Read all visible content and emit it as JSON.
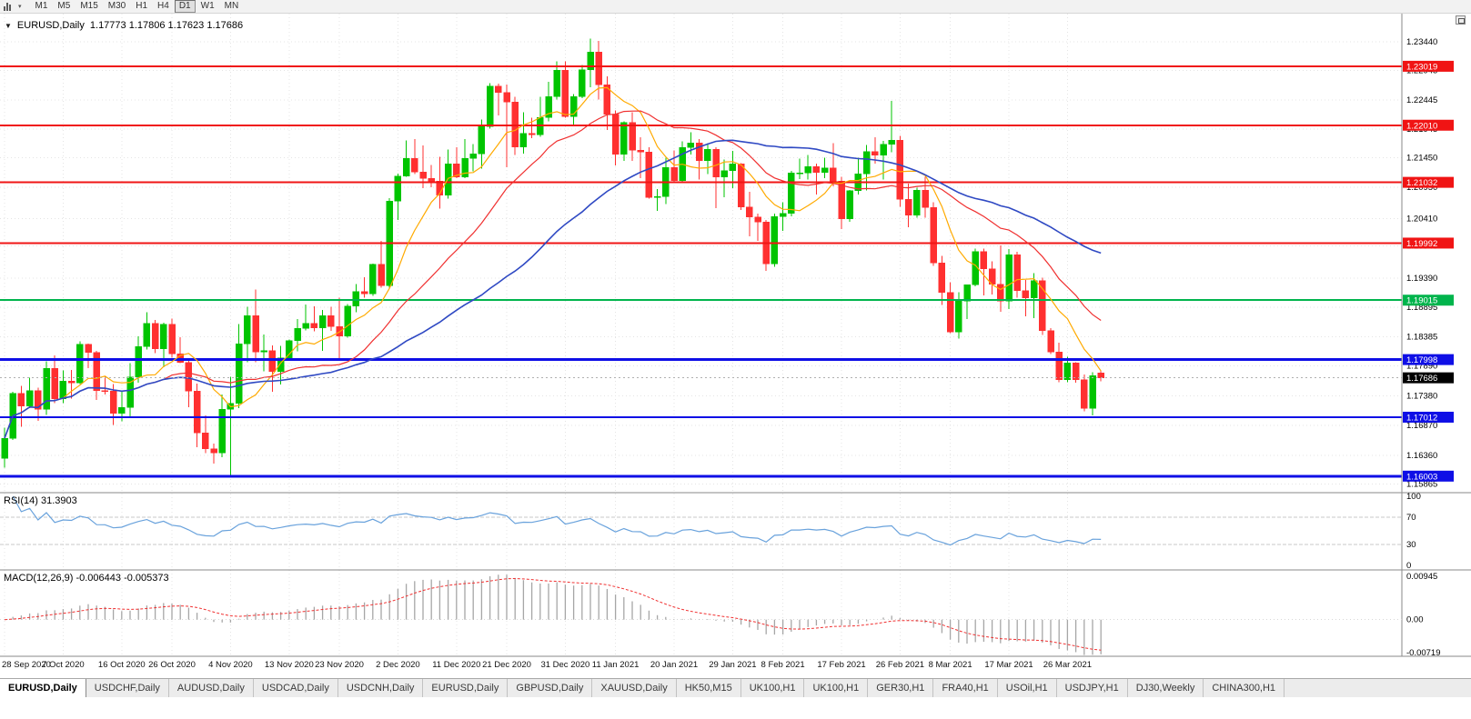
{
  "toolbar": {
    "timeframes": [
      "M1",
      "M5",
      "M15",
      "M30",
      "H1",
      "H4",
      "D1",
      "W1",
      "MN"
    ],
    "active_timeframe": "D1"
  },
  "symbol_info": {
    "title": "EURUSD,Daily",
    "ohlc_text": "1.17773 1.17806 1.17623 1.17686"
  },
  "icons": {
    "chart_type": "bar-chart-icon",
    "dropdown_caret": "▾",
    "symbol_marker": "▼"
  },
  "tabs": [
    "EURUSD,Daily",
    "USDCHF,Daily",
    "AUDUSD,Daily",
    "USDCAD,Daily",
    "USDCNH,Daily",
    "EURUSD,Daily",
    "GBPUSD,Daily",
    "XAUUSD,Daily",
    "HK50,M15",
    "UK100,H1",
    "UK100,H1",
    "GER30,H1",
    "FRA40,H1",
    "USOil,H1",
    "USDJPY,H1",
    "DJ30,Weekly",
    "CHINA300,H1"
  ],
  "active_tab_index": 0,
  "colors": {
    "bull": "#00c400",
    "bear": "#ff3030",
    "grid": "#e4e4e4",
    "axis": "#8a8a8a",
    "bid_line": "#b0b0b0",
    "rsi_line": "#69a2dc",
    "macd_hist": "#a6a6a6",
    "macd_signal": "#f03030",
    "current_price_bg": "#000000"
  },
  "chart_data": {
    "type": "candlestick",
    "symbol": "EURUSD",
    "timeframe": "Daily",
    "y_range": [
      1.1572,
      1.2392
    ],
    "price_ticks": [
      "1.23440",
      "1.22945",
      "1.22445",
      "1.21945",
      "1.21450",
      "1.20950",
      "1.20410",
      "1.19945",
      "1.19390",
      "1.18895",
      "1.18385",
      "1.17890",
      "1.17380",
      "1.16870",
      "1.16360",
      "1.15865"
    ],
    "hlines": [
      {
        "price": 1.23019,
        "label": "1.23019",
        "color": "#f01414",
        "width": 2
      },
      {
        "price": 1.2201,
        "label": "1.22010",
        "color": "#f01414",
        "width": 2
      },
      {
        "price": 1.21032,
        "label": "1.21032",
        "color": "#f01414",
        "width": 2
      },
      {
        "price": 1.19992,
        "label": "1.19992",
        "color": "#f01414",
        "width": 2
      },
      {
        "price": 1.19015,
        "label": "1.19015",
        "color": "#00b44c",
        "width": 2
      },
      {
        "price": 1.17998,
        "label": "1.17998",
        "color": "#0f0fe6",
        "width": 3
      },
      {
        "price": 1.17012,
        "label": "1.17012",
        "color": "#0f0fe6",
        "width": 2
      },
      {
        "price": 1.16003,
        "label": "1.16003",
        "color": "#0f0fe6",
        "width": 3
      }
    ],
    "current_price": 1.17686,
    "current_price_label": "1.17686",
    "moving_averages": [
      {
        "period": 8,
        "color": "#ffaa00",
        "width": 1.2
      },
      {
        "period": 20,
        "color": "#f03030",
        "width": 1.2
      },
      {
        "period": 40,
        "color": "#2f49c3",
        "width": 1.6
      }
    ],
    "rsi": {
      "header": "RSI(14) 31.3903",
      "period": 14,
      "last": 31.3903,
      "ticks": [
        100,
        70,
        30,
        0
      ],
      "levels": [
        70,
        30
      ]
    },
    "macd": {
      "header": "MACD(12,26,9) -0.006443 -0.005373",
      "fast": 12,
      "slow": 26,
      "signal_period": 9,
      "last_main": -0.006443,
      "last_signal": -0.005373,
      "range": [
        -0.00719,
        0.00945
      ],
      "ticks": [
        {
          "label": "0.00945",
          "value": 0.00945
        },
        {
          "label": "0.00",
          "value": 0.0
        },
        {
          "label": "-0.00719",
          "value": -0.00719
        }
      ]
    },
    "date_labels": [
      {
        "t": "28 Sep 2020",
        "i": 0
      },
      {
        "t": "7 Oct 2020",
        "i": 7
      },
      {
        "t": "16 Oct 2020",
        "i": 14
      },
      {
        "t": "26 Oct 2020",
        "i": 20
      },
      {
        "t": "4 Nov 2020",
        "i": 27
      },
      {
        "t": "13 Nov 2020",
        "i": 34
      },
      {
        "t": "23 Nov 2020",
        "i": 40
      },
      {
        "t": "2 Dec 2020",
        "i": 47
      },
      {
        "t": "11 Dec 2020",
        "i": 54
      },
      {
        "t": "21 Dec 2020",
        "i": 60
      },
      {
        "t": "31 Dec 2020",
        "i": 67
      },
      {
        "t": "11 Jan 2021",
        "i": 73
      },
      {
        "t": "20 Jan 2021",
        "i": 80
      },
      {
        "t": "29 Jan 2021",
        "i": 87
      },
      {
        "t": "8 Feb 2021",
        "i": 93
      },
      {
        "t": "17 Feb 2021",
        "i": 100
      },
      {
        "t": "26 Feb 2021",
        "i": 107
      },
      {
        "t": "8 Mar 2021",
        "i": 113
      },
      {
        "t": "17 Mar 2021",
        "i": 120
      },
      {
        "t": "26 Mar 2021",
        "i": 127
      }
    ],
    "ohlc": [
      [
        1.1631,
        1.1683,
        1.1615,
        1.1665
      ],
      [
        1.1665,
        1.1745,
        1.1662,
        1.1742
      ],
      [
        1.1742,
        1.1755,
        1.1685,
        1.172
      ],
      [
        1.172,
        1.1769,
        1.1717,
        1.1747
      ],
      [
        1.1747,
        1.1752,
        1.1695,
        1.1715
      ],
      [
        1.1715,
        1.1797,
        1.1705,
        1.1785
      ],
      [
        1.1785,
        1.1807,
        1.1725,
        1.1733
      ],
      [
        1.1733,
        1.1781,
        1.1725,
        1.1763
      ],
      [
        1.1763,
        1.1782,
        1.1733,
        1.176
      ],
      [
        1.176,
        1.1831,
        1.1758,
        1.1826
      ],
      [
        1.1826,
        1.1827,
        1.1785,
        1.1812
      ],
      [
        1.1812,
        1.1815,
        1.1731,
        1.1747
      ],
      [
        1.1747,
        1.1772,
        1.174,
        1.1746
      ],
      [
        1.1746,
        1.1758,
        1.1688,
        1.1708
      ],
      [
        1.1708,
        1.1746,
        1.1694,
        1.1718
      ],
      [
        1.1718,
        1.1794,
        1.1703,
        1.177
      ],
      [
        1.177,
        1.184,
        1.176,
        1.1822
      ],
      [
        1.1822,
        1.1881,
        1.1817,
        1.1862
      ],
      [
        1.1862,
        1.1868,
        1.1811,
        1.1818
      ],
      [
        1.1818,
        1.1863,
        1.1787,
        1.186
      ],
      [
        1.186,
        1.187,
        1.1803,
        1.181
      ],
      [
        1.181,
        1.1838,
        1.1794,
        1.1795
      ],
      [
        1.1795,
        1.18,
        1.1718,
        1.1746
      ],
      [
        1.1746,
        1.1759,
        1.165,
        1.1674
      ],
      [
        1.1674,
        1.1704,
        1.164,
        1.1647
      ],
      [
        1.1647,
        1.1656,
        1.1622,
        1.164
      ],
      [
        1.164,
        1.174,
        1.1633,
        1.1715
      ],
      [
        1.1715,
        1.177,
        1.1602,
        1.1725
      ],
      [
        1.1725,
        1.1861,
        1.1717,
        1.1827
      ],
      [
        1.1827,
        1.189,
        1.1795,
        1.1875
      ],
      [
        1.1875,
        1.192,
        1.1795,
        1.1813
      ],
      [
        1.1813,
        1.1843,
        1.178,
        1.1815
      ],
      [
        1.1815,
        1.1824,
        1.1745,
        1.1779
      ],
      [
        1.1779,
        1.1823,
        1.1757,
        1.1803
      ],
      [
        1.1803,
        1.1834,
        1.1799,
        1.1832
      ],
      [
        1.1832,
        1.1869,
        1.1814,
        1.1853
      ],
      [
        1.1853,
        1.1894,
        1.185,
        1.1862
      ],
      [
        1.1862,
        1.1891,
        1.1848,
        1.1854
      ],
      [
        1.1854,
        1.1885,
        1.1815,
        1.1875
      ],
      [
        1.1875,
        1.189,
        1.1849,
        1.1856
      ],
      [
        1.1856,
        1.1906,
        1.18,
        1.184
      ],
      [
        1.184,
        1.1895,
        1.1837,
        1.1891
      ],
      [
        1.1891,
        1.1929,
        1.1881,
        1.1916
      ],
      [
        1.1916,
        1.1941,
        1.1906,
        1.1912
      ],
      [
        1.1912,
        1.1964,
        1.1909,
        1.1963
      ],
      [
        1.1963,
        1.2003,
        1.1923,
        1.1926
      ],
      [
        1.1926,
        1.2076,
        1.1923,
        1.2071
      ],
      [
        1.2071,
        1.2118,
        1.2039,
        1.2114
      ],
      [
        1.2114,
        1.2175,
        1.2113,
        1.2144
      ],
      [
        1.2144,
        1.2177,
        1.2117,
        1.2121
      ],
      [
        1.2121,
        1.2166,
        1.2093,
        1.211
      ],
      [
        1.211,
        1.2133,
        1.2095,
        1.2105
      ],
      [
        1.2105,
        1.2147,
        1.2058,
        1.2081
      ],
      [
        1.2081,
        1.2159,
        1.2075,
        1.2135
      ],
      [
        1.2135,
        1.2163,
        1.211,
        1.2112
      ],
      [
        1.2112,
        1.2177,
        1.211,
        1.2144
      ],
      [
        1.2144,
        1.2169,
        1.2122,
        1.2152
      ],
      [
        1.2152,
        1.2211,
        1.2127,
        1.2199
      ],
      [
        1.2199,
        1.2273,
        1.2195,
        1.2268
      ],
      [
        1.2268,
        1.2272,
        1.2218,
        1.2257
      ],
      [
        1.2257,
        1.2271,
        1.2129,
        1.2241
      ],
      [
        1.2241,
        1.225,
        1.215,
        1.2164
      ],
      [
        1.2164,
        1.2223,
        1.2152,
        1.2187
      ],
      [
        1.2187,
        1.2214,
        1.2179,
        1.2185
      ],
      [
        1.2185,
        1.225,
        1.2181,
        1.2214
      ],
      [
        1.2214,
        1.2275,
        1.2208,
        1.225
      ],
      [
        1.225,
        1.231,
        1.2245,
        1.2295
      ],
      [
        1.2295,
        1.231,
        1.2214,
        1.2216
      ],
      [
        1.2216,
        1.2254,
        1.22,
        1.225
      ],
      [
        1.225,
        1.2304,
        1.2247,
        1.2296
      ],
      [
        1.2296,
        1.2349,
        1.2266,
        1.2326
      ],
      [
        1.2326,
        1.2345,
        1.2245,
        1.227
      ],
      [
        1.227,
        1.2285,
        1.2193,
        1.222
      ],
      [
        1.222,
        1.2226,
        1.2132,
        1.2151
      ],
      [
        1.2151,
        1.2208,
        1.214,
        1.2206
      ],
      [
        1.2206,
        1.2223,
        1.214,
        1.2158
      ],
      [
        1.2158,
        1.218,
        1.211,
        1.2155
      ],
      [
        1.2155,
        1.2163,
        1.2075,
        1.2077
      ],
      [
        1.2077,
        1.2092,
        1.2054,
        1.2079
      ],
      [
        1.2079,
        1.2145,
        1.2066,
        1.2129
      ],
      [
        1.2129,
        1.2158,
        1.2102,
        1.2106
      ],
      [
        1.2106,
        1.2173,
        1.2104,
        1.2163
      ],
      [
        1.2163,
        1.2189,
        1.2151,
        1.2171
      ],
      [
        1.2171,
        1.2177,
        1.2108,
        1.214
      ],
      [
        1.214,
        1.217,
        1.2117,
        1.216
      ],
      [
        1.216,
        1.2163,
        1.2059,
        1.2112
      ],
      [
        1.2112,
        1.2142,
        1.2078,
        1.2123
      ],
      [
        1.2123,
        1.2157,
        1.2093,
        1.2135
      ],
      [
        1.2135,
        1.2136,
        1.2056,
        1.2061
      ],
      [
        1.2061,
        1.2087,
        1.2011,
        1.2044
      ],
      [
        1.2044,
        1.205,
        1.2003,
        1.2035
      ],
      [
        1.2035,
        1.2039,
        1.1952,
        1.1964
      ],
      [
        1.1964,
        1.205,
        1.1959,
        1.2045
      ],
      [
        1.2045,
        1.2069,
        1.202,
        1.205
      ],
      [
        1.205,
        1.2123,
        1.2045,
        1.2119
      ],
      [
        1.2119,
        1.2144,
        1.2109,
        1.2119
      ],
      [
        1.2119,
        1.215,
        1.2108,
        1.213
      ],
      [
        1.213,
        1.2135,
        1.2082,
        1.212
      ],
      [
        1.212,
        1.2145,
        1.211,
        1.2128
      ],
      [
        1.2128,
        1.217,
        1.2096,
        1.2105
      ],
      [
        1.2105,
        1.2113,
        1.2023,
        1.2041
      ],
      [
        1.2041,
        1.209,
        1.2036,
        1.2089
      ],
      [
        1.2089,
        1.2145,
        1.2082,
        1.2118
      ],
      [
        1.2118,
        1.2167,
        1.2089,
        1.2156
      ],
      [
        1.2156,
        1.218,
        1.2135,
        1.215
      ],
      [
        1.215,
        1.2174,
        1.2108,
        1.2168
      ],
      [
        1.2168,
        1.2243,
        1.2155,
        1.2175
      ],
      [
        1.2175,
        1.2183,
        1.2061,
        1.2074
      ],
      [
        1.2074,
        1.2101,
        1.2026,
        1.2047
      ],
      [
        1.2047,
        1.2094,
        1.2043,
        1.209
      ],
      [
        1.209,
        1.2113,
        1.2043,
        1.206
      ],
      [
        1.206,
        1.2069,
        1.196,
        1.1965
      ],
      [
        1.1965,
        1.1977,
        1.1893,
        1.1915
      ],
      [
        1.1915,
        1.1932,
        1.1845,
        1.1847
      ],
      [
        1.1847,
        1.1915,
        1.1836,
        1.19
      ],
      [
        1.19,
        1.1928,
        1.1869,
        1.1928
      ],
      [
        1.1928,
        1.199,
        1.1925,
        1.1985
      ],
      [
        1.1985,
        1.199,
        1.191,
        1.1955
      ],
      [
        1.1955,
        1.1968,
        1.1911,
        1.1929
      ],
      [
        1.1929,
        1.1995,
        1.1882,
        1.19
      ],
      [
        1.19,
        1.1989,
        1.1886,
        1.1979
      ],
      [
        1.1979,
        1.1984,
        1.1906,
        1.1918
      ],
      [
        1.1918,
        1.1936,
        1.1874,
        1.1905
      ],
      [
        1.1905,
        1.1948,
        1.1871,
        1.1935
      ],
      [
        1.1935,
        1.194,
        1.1842,
        1.1849
      ],
      [
        1.1849,
        1.1854,
        1.1809,
        1.1813
      ],
      [
        1.1813,
        1.1829,
        1.1761,
        1.1765
      ],
      [
        1.1765,
        1.1805,
        1.1761,
        1.1794
      ],
      [
        1.1794,
        1.1795,
        1.176,
        1.1765
      ],
      [
        1.1765,
        1.1774,
        1.1711,
        1.1716
      ],
      [
        1.1716,
        1.1778,
        1.1704,
        1.1772
      ],
      [
        1.17773,
        1.17806,
        1.17623,
        1.17686
      ]
    ]
  }
}
